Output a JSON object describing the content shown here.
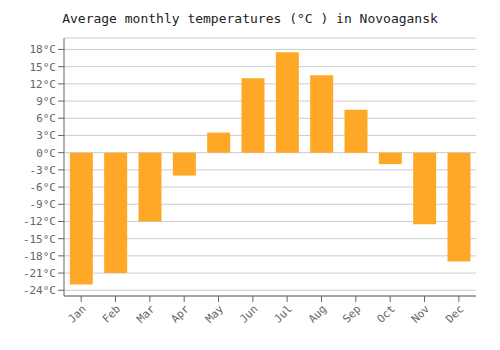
{
  "chart_data": {
    "type": "bar",
    "title": "Average monthly temperatures (°C ) in Novoagansk",
    "categories": [
      "Jan",
      "Feb",
      "Mar",
      "Apr",
      "May",
      "Jun",
      "Jul",
      "Aug",
      "Sep",
      "Oct",
      "Nov",
      "Dec"
    ],
    "values": [
      -23,
      -21,
      -12,
      -4,
      3.5,
      13,
      17.5,
      13.5,
      7.5,
      -2,
      -12.5,
      -19
    ],
    "color": "#FFA726",
    "ylim": [
      -25,
      20
    ],
    "yticks": [
      {
        "value": -24,
        "label": "-24°C"
      },
      {
        "value": -21,
        "label": "-21°C"
      },
      {
        "value": -18,
        "label": "-18°C"
      },
      {
        "value": -15,
        "label": "-15°C"
      },
      {
        "value": -12,
        "label": "-12°C"
      },
      {
        "value": -9,
        "label": "-9°C"
      },
      {
        "value": -6,
        "label": "-6°C"
      },
      {
        "value": -3,
        "label": "-3°C"
      },
      {
        "value": 0,
        "label": "0°C"
      },
      {
        "value": 3,
        "label": "3°C"
      },
      {
        "value": 6,
        "label": "6°C"
      },
      {
        "value": 9,
        "label": "9°C"
      },
      {
        "value": 12,
        "label": "12°C"
      },
      {
        "value": 15,
        "label": "15°C"
      },
      {
        "value": 18,
        "label": "18°C"
      }
    ],
    "grid": true
  }
}
